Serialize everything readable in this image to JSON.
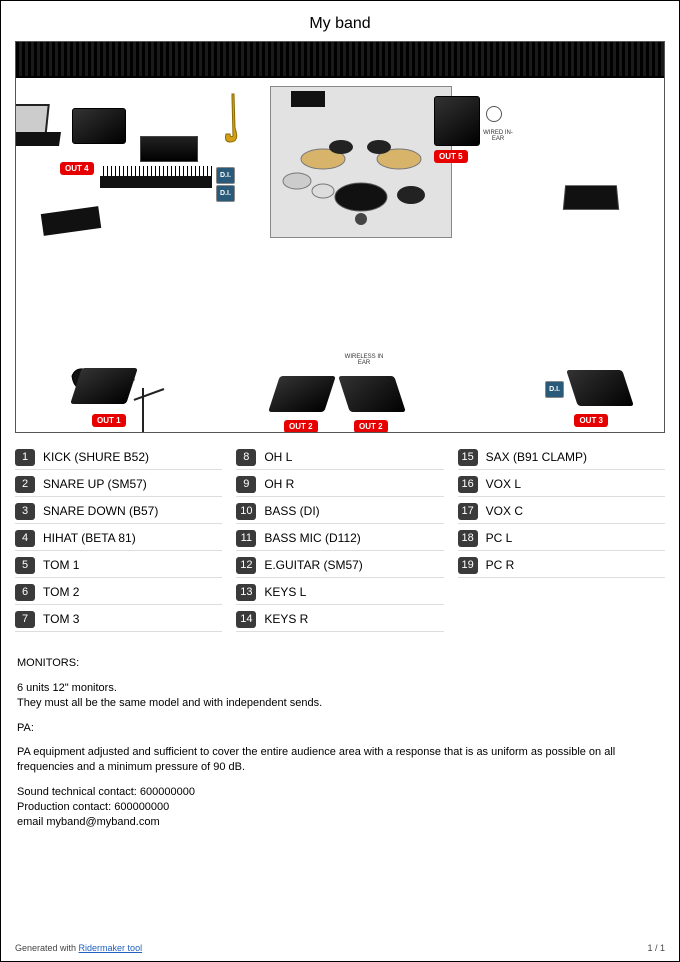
{
  "title": "My band",
  "stage": {
    "out_labels": [
      "OUT 1",
      "OUT 2",
      "OUT 2",
      "OUT 3",
      "OUT 4",
      "OUT 5"
    ],
    "di_label": "D.I.",
    "wired_iem": "WIRED IN-EAR",
    "wireless_iem": "WIRELESS IN EAR",
    "label_bg": "#e60000",
    "label_fg": "#ffffff",
    "di_bg": "#2a5a7a",
    "curtain_color": "#000000",
    "riser_bg": "#e2e2e2",
    "sax_color": "#d4a017"
  },
  "inputs": {
    "col1": [
      {
        "n": "1",
        "t": "KICK (SHURE B52)"
      },
      {
        "n": "2",
        "t": "SNARE UP (SM57)"
      },
      {
        "n": "3",
        "t": "SNARE DOWN (B57)"
      },
      {
        "n": "4",
        "t": "HIHAT (BETA 81)"
      },
      {
        "n": "5",
        "t": "TOM 1"
      },
      {
        "n": "6",
        "t": "TOM 2"
      },
      {
        "n": "7",
        "t": "TOM 3"
      }
    ],
    "col2": [
      {
        "n": "8",
        "t": "OH L"
      },
      {
        "n": "9",
        "t": "OH R"
      },
      {
        "n": "10",
        "t": "BASS (DI)"
      },
      {
        "n": "11",
        "t": "BASS MIC (D112)"
      },
      {
        "n": "12",
        "t": "E.GUITAR (SM57)"
      },
      {
        "n": "13",
        "t": "KEYS L"
      },
      {
        "n": "14",
        "t": "KEYS R"
      }
    ],
    "col3": [
      {
        "n": "15",
        "t": "SAX (B91 CLAMP)"
      },
      {
        "n": "16",
        "t": "VOX L"
      },
      {
        "n": "17",
        "t": "VOX C"
      },
      {
        "n": "18",
        "t": "PC L"
      },
      {
        "n": "19",
        "t": "PC R"
      }
    ]
  },
  "notes": {
    "mon_h": "MONITORS:",
    "mon_1": "6 units 12\" monitors.",
    "mon_2": "They must all be the same model and with independent sends.",
    "pa_h": "PA:",
    "pa_1": "PA equipment adjusted and sufficient to cover the entire audience area with a response that is as uniform as possible on all frequencies and a minimum pressure of 90 dB.",
    "c1": "Sound technical contact: 600000000",
    "c2": "Production contact: 600000000",
    "c3": "email myband@myband.com"
  },
  "footer": {
    "gen": "Generated with ",
    "link": "Ridermaker tool",
    "page": "1 / 1"
  }
}
